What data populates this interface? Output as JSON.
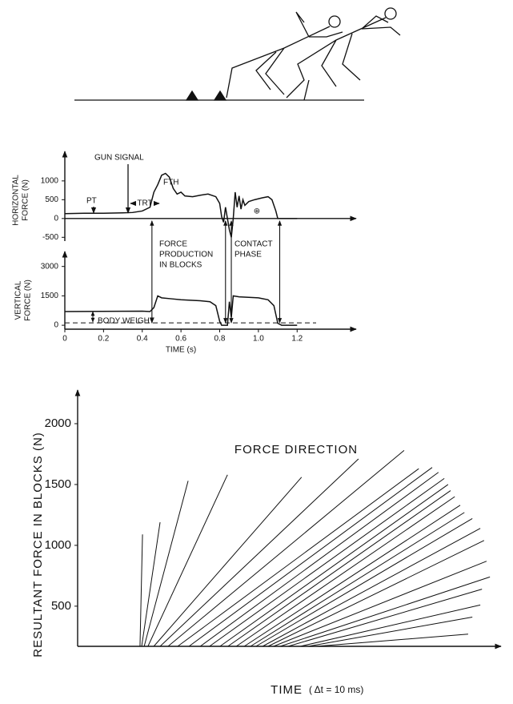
{
  "chart_data": [
    {
      "type": "line",
      "ylabel": [
        "HORIZONTAL",
        "FORCE (N)"
      ],
      "annotations": {
        "gun": "GUN SIGNAL",
        "pt": "PT",
        "trt": "TRT",
        "fth": "FTH",
        "plus": "⊕"
      },
      "x": [
        0,
        0.1,
        0.2,
        0.3,
        0.35,
        0.4,
        0.44,
        0.46,
        0.48,
        0.5,
        0.52,
        0.54,
        0.56,
        0.58,
        0.6,
        0.62,
        0.66,
        0.7,
        0.74,
        0.78,
        0.8,
        0.81,
        0.82,
        0.83,
        0.84,
        0.85,
        0.86,
        0.87,
        0.88,
        0.89,
        0.9,
        0.91,
        0.92,
        0.93,
        0.95,
        0.98,
        1.02,
        1.05,
        1.07,
        1.09,
        1.1,
        1.2
      ],
      "values": [
        130,
        140,
        140,
        150,
        160,
        200,
        300,
        700,
        900,
        1150,
        1200,
        1100,
        800,
        650,
        700,
        600,
        580,
        620,
        650,
        580,
        400,
        50,
        -100,
        300,
        0,
        -300,
        -500,
        0,
        700,
        300,
        600,
        250,
        500,
        350,
        450,
        500,
        550,
        580,
        500,
        200,
        0,
        0
      ],
      "color": "#111",
      "markers": [
        0.45,
        0.83,
        0.86,
        1.11
      ],
      "xlim": [
        0,
        1.48
      ],
      "ylim": [
        -600,
        1700
      ],
      "yticks": [
        -500,
        0,
        500,
        1000
      ]
    },
    {
      "type": "line",
      "ylabel": [
        "VERTICAL",
        "FORCE (N)"
      ],
      "xlabel": "TIME (s)",
      "annotations": {
        "blocks": [
          "FORCE",
          "PRODUCTION",
          "IN BLOCKS"
        ],
        "contact": [
          "CONTACT",
          "PHASE"
        ],
        "weight": "BODY WEIGHT"
      },
      "x": [
        0,
        0.4,
        0.44,
        0.46,
        0.48,
        0.5,
        0.55,
        0.6,
        0.7,
        0.75,
        0.78,
        0.8,
        0.81,
        0.84,
        0.85,
        0.86,
        0.87,
        0.9,
        1.0,
        1.05,
        1.08,
        1.1,
        1.12,
        1.2
      ],
      "values": [
        700,
        720,
        700,
        900,
        1500,
        1400,
        1350,
        1300,
        1250,
        1200,
        1000,
        200,
        0,
        0,
        1200,
        400,
        1500,
        1450,
        1400,
        1300,
        1000,
        100,
        0,
        0
      ],
      "color": "#111",
      "xlim": [
        0,
        1.48
      ],
      "ylim": [
        -200,
        3600
      ],
      "yticks": [
        0,
        1500,
        3000
      ],
      "xticks": [
        0,
        0.2,
        0.4,
        0.6,
        0.8,
        {
          "value": 1,
          "label": "1.0"
        },
        1.2
      ]
    },
    {
      "type": "vector",
      "title": "FORCE DIRECTION",
      "ylabel": "RESULTANT FORCE IN BLOCKS (N)",
      "xlabel": "TIME",
      "xnote": "( Δt = 10 ms)",
      "x_start": [
        14.9,
        15.3,
        15.9,
        16.8,
        18.2,
        19.7,
        21.6,
        23.9,
        26.6,
        29.3,
        31.5,
        34.0,
        35.9,
        37.9,
        39.8,
        41.3,
        42.6,
        44.2,
        45.5,
        46.8,
        48.4,
        50.3,
        53.2,
        55.1,
        57.0
      ],
      "x_end": [
        15.5,
        19.7,
        26.4,
        35.8,
        53.5,
        67.1,
        78.0,
        81.5,
        84.7,
        86.2,
        87.6,
        88.5,
        89.1,
        90.1,
        91.4,
        92.4,
        94.3,
        96.2,
        97.1,
        97.7,
        98.5,
        96.6,
        96.2,
        94.3,
        93.3
      ],
      "y_end": [
        1090,
        1190,
        1530,
        1580,
        1560,
        1710,
        1780,
        1630,
        1640,
        1600,
        1550,
        1500,
        1450,
        1400,
        1330,
        1270,
        1220,
        1140,
        1040,
        870,
        740,
        640,
        510,
        410,
        270
      ],
      "color": "#111",
      "xlim": [
        0,
        100
      ],
      "ylim": [
        170,
        2250
      ],
      "yticks": [
        500,
        1000,
        1500,
        2000
      ]
    }
  ]
}
